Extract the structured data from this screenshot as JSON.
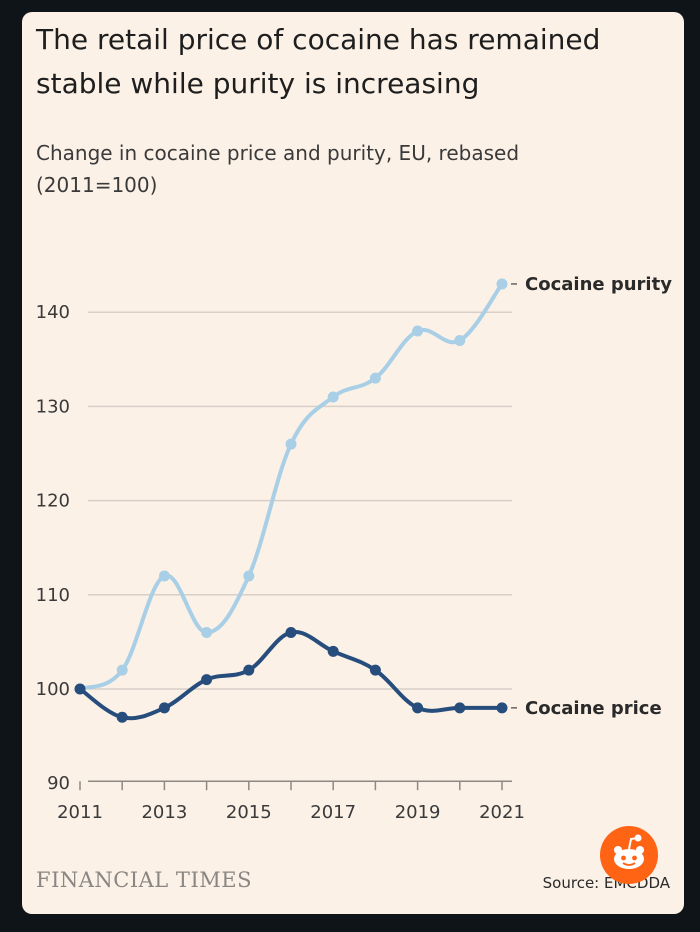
{
  "header": {
    "title": "The retail price of cocaine has remained stable while purity is increasing",
    "subtitle": "Change in cocaine price and purity, EU, rebased (2011=100)"
  },
  "footer": {
    "brand": "FINANCIAL TIMES",
    "source": "Source: EMCDDA"
  },
  "colors": {
    "purity": "#a9cfe6",
    "price": "#274d7d",
    "grid": "#d8d0c8"
  },
  "chart_data": {
    "type": "line",
    "title": "The retail price of cocaine has remained stable while purity is increasing",
    "subtitle": "Change in cocaine price and purity, EU, rebased (2011=100)",
    "xlabel": "",
    "ylabel": "",
    "x": [
      2011,
      2012,
      2013,
      2014,
      2015,
      2016,
      2017,
      2018,
      2019,
      2020,
      2021
    ],
    "x_tick_labels": [
      "2011",
      "2013",
      "2015",
      "2017",
      "2019",
      "2021"
    ],
    "x_tick_values": [
      2011,
      2013,
      2015,
      2017,
      2019,
      2021
    ],
    "y_ticks": [
      90,
      100,
      110,
      120,
      130,
      140
    ],
    "y_tick_labels": [
      "90",
      "100",
      "110",
      "120",
      "130",
      "140"
    ],
    "xlim": [
      2011,
      2021
    ],
    "ylim": [
      90,
      143
    ],
    "grid": true,
    "legend": "inline-right",
    "series": [
      {
        "name": "Cocaine purity",
        "color": "#a9cfe6",
        "values": [
          100,
          102,
          112,
          106,
          112,
          126,
          131,
          133,
          138,
          137,
          143
        ]
      },
      {
        "name": "Cocaine price",
        "color": "#274d7d",
        "values": [
          100,
          97,
          98,
          101,
          102,
          106,
          104,
          102,
          98,
          98,
          98
        ]
      }
    ]
  }
}
